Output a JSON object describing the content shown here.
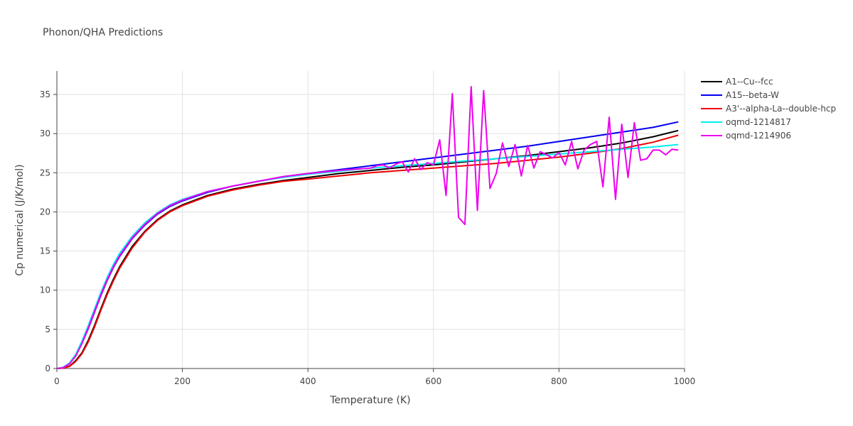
{
  "chart_data": {
    "type": "line",
    "title": "Phonon/QHA Predictions",
    "xlabel": "Temperature (K)",
    "ylabel": "Cp numerical (J/K/mol)",
    "xlim": [
      0,
      1000
    ],
    "ylim": [
      0,
      38
    ],
    "xticks": [
      0,
      200,
      400,
      600,
      800,
      1000
    ],
    "yticks": [
      0,
      5,
      10,
      15,
      20,
      25,
      30,
      35
    ],
    "grid": true,
    "legend_position": "top-right",
    "series": [
      {
        "name": "A1--Cu--fcc",
        "color": "#000000",
        "x": [
          0,
          10,
          20,
          30,
          40,
          50,
          60,
          70,
          80,
          90,
          100,
          120,
          140,
          160,
          180,
          200,
          240,
          280,
          320,
          360,
          400,
          450,
          500,
          550,
          600,
          650,
          700,
          750,
          800,
          850,
          900,
          950,
          990
        ],
        "y": [
          0,
          0.05,
          0.3,
          1.0,
          2.0,
          3.6,
          5.5,
          7.6,
          9.6,
          11.4,
          13.0,
          15.6,
          17.5,
          19.0,
          20.1,
          20.9,
          22.1,
          22.9,
          23.5,
          24.0,
          24.4,
          24.9,
          25.3,
          25.7,
          26.0,
          26.4,
          26.8,
          27.2,
          27.7,
          28.2,
          28.8,
          29.6,
          30.4
        ]
      },
      {
        "name": "A15--beta-W",
        "color": "#0000ee",
        "x": [
          0,
          10,
          20,
          30,
          40,
          50,
          60,
          70,
          80,
          90,
          100,
          120,
          140,
          160,
          180,
          200,
          240,
          280,
          320,
          360,
          400,
          450,
          500,
          550,
          600,
          650,
          700,
          750,
          800,
          850,
          900,
          950,
          990
        ],
        "y": [
          0,
          0.1,
          0.6,
          1.6,
          3.2,
          5.1,
          7.2,
          9.3,
          11.2,
          12.9,
          14.3,
          16.6,
          18.3,
          19.7,
          20.7,
          21.4,
          22.5,
          23.3,
          23.9,
          24.5,
          24.9,
          25.4,
          25.9,
          26.4,
          26.9,
          27.4,
          27.9,
          28.4,
          29.0,
          29.6,
          30.2,
          30.8,
          31.5
        ]
      },
      {
        "name": "A3'--alpha-La--double-hcp",
        "color": "#ee0000",
        "x": [
          0,
          10,
          20,
          30,
          40,
          50,
          60,
          70,
          80,
          90,
          100,
          120,
          140,
          160,
          180,
          200,
          240,
          280,
          320,
          360,
          400,
          450,
          500,
          550,
          600,
          650,
          700,
          750,
          800,
          850,
          900,
          950,
          990
        ],
        "y": [
          0,
          0.05,
          0.25,
          0.9,
          1.9,
          3.4,
          5.3,
          7.4,
          9.4,
          11.2,
          12.8,
          15.4,
          17.4,
          18.9,
          20.0,
          20.8,
          22.0,
          22.8,
          23.4,
          23.9,
          24.2,
          24.6,
          25.0,
          25.3,
          25.6,
          25.9,
          26.2,
          26.6,
          27.0,
          27.5,
          28.1,
          28.9,
          29.8
        ]
      },
      {
        "name": "oqmd-1214817",
        "color": "#00eeee",
        "x": [
          0,
          10,
          20,
          30,
          40,
          50,
          60,
          70,
          80,
          90,
          100,
          120,
          140,
          160,
          180,
          200,
          240,
          280,
          320,
          360,
          400,
          450,
          500,
          550,
          600,
          650,
          700,
          750,
          800,
          850,
          900,
          950,
          990
        ],
        "y": [
          0,
          0.15,
          0.7,
          1.8,
          3.5,
          5.5,
          7.6,
          9.7,
          11.6,
          13.3,
          14.7,
          16.9,
          18.6,
          19.9,
          20.9,
          21.6,
          22.6,
          23.3,
          23.9,
          24.4,
          24.8,
          25.2,
          25.6,
          25.9,
          26.2,
          26.5,
          26.8,
          27.1,
          27.4,
          27.7,
          28.0,
          28.3,
          28.6
        ]
      },
      {
        "name": "oqmd-1214906",
        "color": "#ee00ee",
        "x": [
          0,
          10,
          20,
          30,
          40,
          50,
          60,
          70,
          80,
          90,
          100,
          120,
          140,
          160,
          180,
          200,
          240,
          280,
          320,
          360,
          400,
          450,
          500,
          510,
          520,
          530,
          540,
          550,
          560,
          570,
          580,
          590,
          600,
          610,
          620,
          630,
          640,
          650,
          660,
          670,
          680,
          690,
          700,
          710,
          720,
          730,
          740,
          750,
          760,
          770,
          780,
          790,
          800,
          810,
          820,
          830,
          840,
          850,
          860,
          870,
          880,
          890,
          900,
          910,
          920,
          930,
          940,
          950,
          960,
          970,
          980,
          990
        ],
        "y": [
          0,
          0.1,
          0.6,
          1.6,
          3.2,
          5.2,
          7.3,
          9.4,
          11.3,
          13.0,
          14.4,
          16.7,
          18.4,
          19.8,
          20.8,
          21.5,
          22.6,
          23.3,
          23.9,
          24.5,
          24.9,
          25.3,
          25.6,
          25.9,
          26.0,
          25.6,
          26.1,
          26.4,
          25.1,
          26.8,
          25.4,
          26.3,
          26.0,
          29.2,
          22.1,
          35.1,
          19.3,
          18.4,
          36.0,
          20.2,
          35.5,
          23.0,
          24.9,
          28.8,
          25.8,
          28.6,
          24.6,
          28.5,
          25.6,
          27.7,
          27.3,
          26.9,
          27.6,
          26.0,
          29.0,
          25.5,
          27.9,
          28.6,
          29.0,
          23.2,
          32.1,
          21.6,
          31.2,
          24.4,
          31.4,
          26.6,
          26.8,
          27.9,
          27.9,
          27.3,
          28.0,
          27.9
        ]
      }
    ]
  }
}
